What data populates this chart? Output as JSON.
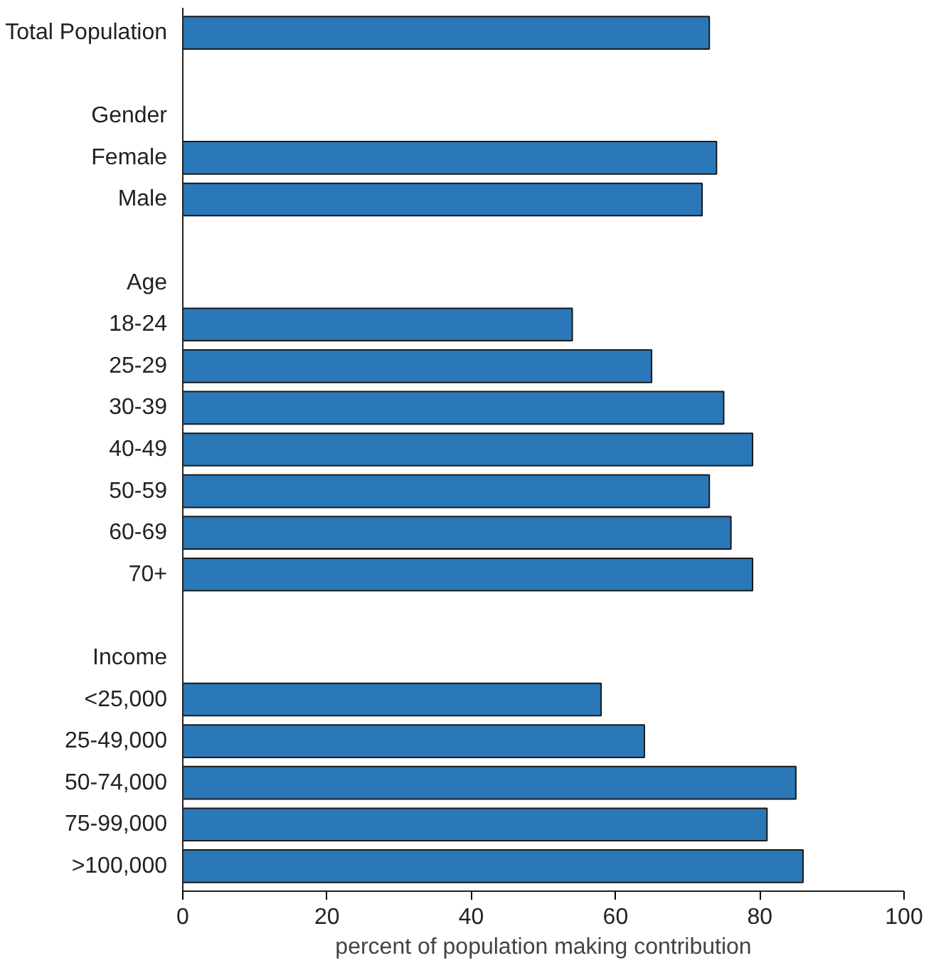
{
  "chart_data": {
    "type": "bar",
    "orientation": "horizontal",
    "xlabel": "percent of population making contribution",
    "categories": [
      "Total Population",
      null,
      "Gender",
      "Female",
      "Male",
      null,
      "Age",
      "18-24",
      "25-29",
      "30-39",
      "40-49",
      "50-59",
      "60-69",
      "70+",
      null,
      "Income",
      "<25,000",
      "25-49,000",
      "50-74,000",
      "75-99,000",
      ">100,000"
    ],
    "values": [
      73,
      null,
      null,
      74,
      72,
      null,
      null,
      54,
      65,
      75,
      79,
      73,
      76,
      79,
      null,
      null,
      58,
      64,
      85,
      81,
      86
    ],
    "color": "#2a78b8",
    "xlim": [
      0,
      100
    ],
    "xticks": [
      0,
      20,
      40,
      60,
      80,
      100
    ],
    "grid": false
  }
}
